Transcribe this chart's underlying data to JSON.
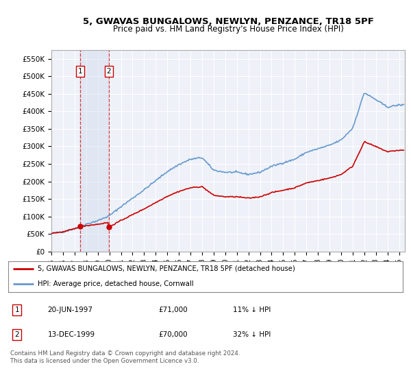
{
  "title": "5, GWAVAS BUNGALOWS, NEWLYN, PENZANCE, TR18 5PF",
  "subtitle": "Price paid vs. HM Land Registry's House Price Index (HPI)",
  "legend_label_red": "5, GWAVAS BUNGALOWS, NEWLYN, PENZANCE, TR18 5PF (detached house)",
  "legend_label_blue": "HPI: Average price, detached house, Cornwall",
  "footnote_line1": "Contains HM Land Registry data © Crown copyright and database right 2024.",
  "footnote_line2": "This data is licensed under the Open Government Licence v3.0.",
  "transactions": [
    {
      "num": 1,
      "date": "20-JUN-1997",
      "price": 71000,
      "price_str": "£71,000",
      "hpi_diff": "11% ↓ HPI",
      "year": 1997.47
    },
    {
      "num": 2,
      "date": "13-DEC-1999",
      "price": 70000,
      "price_str": "£70,000",
      "hpi_diff": "32% ↓ HPI",
      "year": 1999.95
    }
  ],
  "ylim": [
    0,
    575000
  ],
  "xlim_start": 1995.0,
  "xlim_end": 2025.5,
  "yticks": [
    0,
    50000,
    100000,
    150000,
    200000,
    250000,
    300000,
    350000,
    400000,
    450000,
    500000,
    550000
  ],
  "ytick_labels": [
    "£0",
    "£50K",
    "£100K",
    "£150K",
    "£200K",
    "£250K",
    "£300K",
    "£350K",
    "£400K",
    "£450K",
    "£500K",
    "£550K"
  ],
  "xticks": [
    1995,
    1996,
    1997,
    1998,
    1999,
    2000,
    2001,
    2002,
    2003,
    2004,
    2005,
    2006,
    2007,
    2008,
    2009,
    2010,
    2011,
    2012,
    2013,
    2014,
    2015,
    2016,
    2017,
    2018,
    2019,
    2020,
    2021,
    2022,
    2023,
    2024,
    2025
  ],
  "red_color": "#cc0000",
  "blue_color": "#6699cc",
  "bg_plot": "#eef1f8",
  "grid_color": "#ffffff",
  "highlight_color": "#c8d4e8",
  "title_fontsize": 9.5,
  "subtitle_fontsize": 8.5
}
